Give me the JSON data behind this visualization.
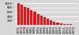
{
  "categories": [
    "1971",
    "1974",
    "1978",
    "1982",
    "1985",
    "1989",
    "1992",
    "1995",
    "1998",
    "2001",
    "2003",
    "2005",
    "2007",
    "2009",
    "2011",
    "2012",
    "2013",
    "2014"
  ],
  "values": [
    1000,
    920,
    840,
    780,
    680,
    600,
    520,
    440,
    360,
    280,
    220,
    170,
    130,
    90,
    65,
    48,
    32,
    20
  ],
  "bar_color": "#ee1111",
  "background_color": "#d8d8d8",
  "grid_color": "#ffffff",
  "ylim": [
    0,
    1100
  ],
  "yticks": [
    200,
    400,
    600,
    800,
    1000
  ],
  "ytick_labels": [
    "200",
    "400",
    "600",
    "800",
    "1000"
  ],
  "xlabel_fontsize": 2.8,
  "ylabel_fontsize": 2.8
}
